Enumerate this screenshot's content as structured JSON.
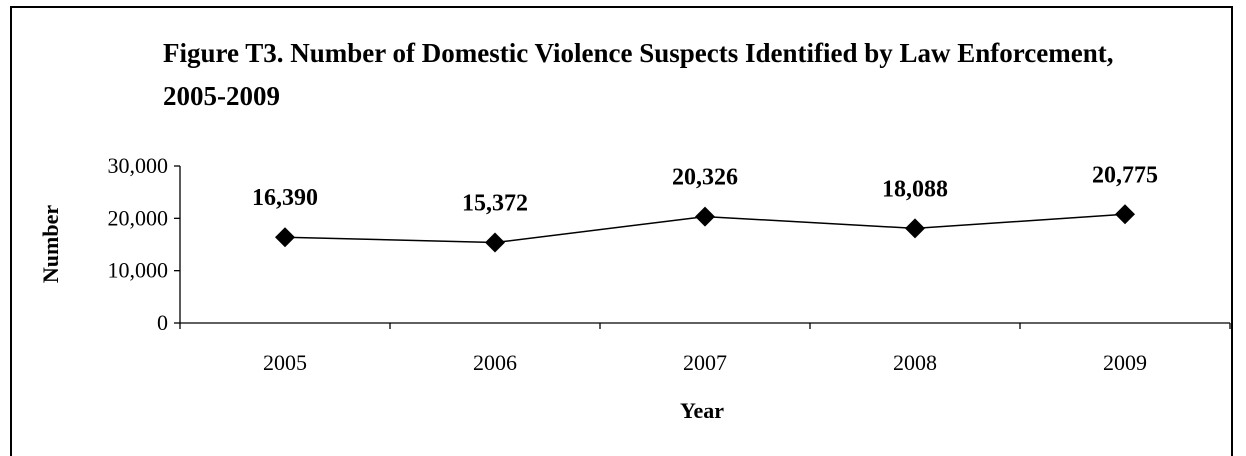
{
  "chart_data": {
    "type": "line",
    "title": "Figure T3.  Number of Domestic Violence Suspects Identified by Law Enforcement, 2005-2009",
    "xlabel": "Year",
    "ylabel": "Number",
    "categories": [
      "2005",
      "2006",
      "2007",
      "2008",
      "2009"
    ],
    "series": [
      {
        "values": [
          16390,
          15372,
          20326,
          18088,
          20775
        ],
        "data_labels": [
          "16,390",
          "15,372",
          "20,326",
          "18,088",
          "20,775"
        ]
      }
    ],
    "ylim": [
      0,
      30000
    ],
    "yticks": [
      0,
      10000,
      20000,
      30000
    ],
    "ytick_labels": [
      "0",
      "10,000",
      "20,000",
      "30,000"
    ],
    "grid": false,
    "legend": "none",
    "marker": "diamond",
    "line_color": "#000000"
  }
}
